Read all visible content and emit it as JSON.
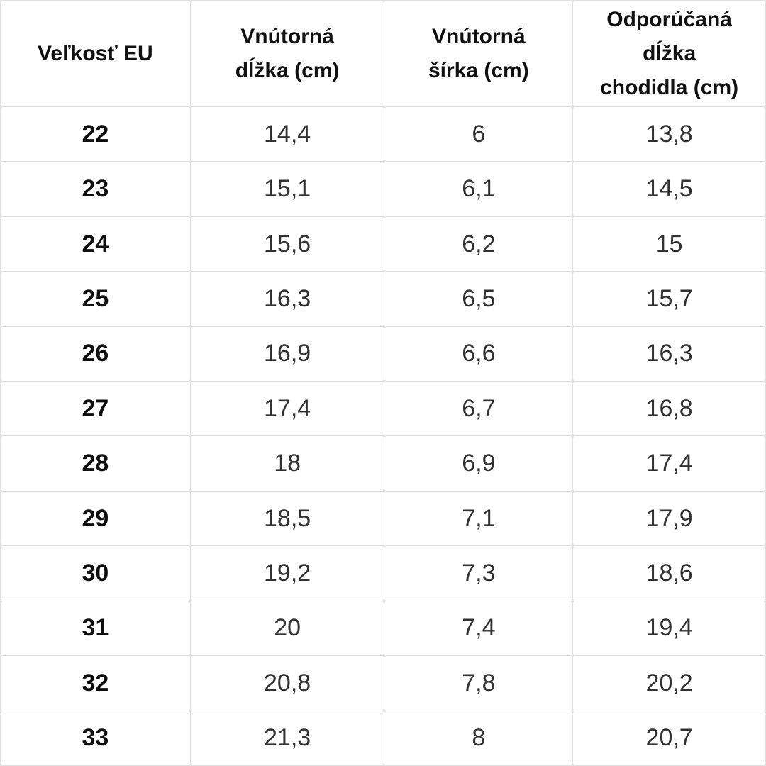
{
  "colors": {
    "grid_line": "#e1e1e1",
    "cell_background": "#ffffff",
    "header_text": "#111111",
    "value_text": "#313131"
  },
  "chart_data": {
    "type": "table",
    "title": "",
    "columns": [
      "Veľkosť EU",
      "Vnútorná dĺžka (cm)",
      "Vnútorná šírka (cm)",
      "Odporúčaná dĺžka chodidla (cm)"
    ],
    "column_lines": [
      [
        "Veľkosť EU"
      ],
      [
        "Vnútorná",
        "dĺžka (cm)"
      ],
      [
        "Vnútorná",
        "šírka (cm)"
      ],
      [
        "Odporúčaná",
        "dĺžka",
        "chodidla (cm)"
      ]
    ],
    "rows": [
      [
        "22",
        "14,4",
        "6",
        "13,8"
      ],
      [
        "23",
        "15,1",
        "6,1",
        "14,5"
      ],
      [
        "24",
        "15,6",
        "6,2",
        "15"
      ],
      [
        "25",
        "16,3",
        "6,5",
        "15,7"
      ],
      [
        "26",
        "16,9",
        "6,6",
        "16,3"
      ],
      [
        "27",
        "17,4",
        "6,7",
        "16,8"
      ],
      [
        "28",
        "18",
        "6,9",
        "17,4"
      ],
      [
        "29",
        "18,5",
        "7,1",
        "17,9"
      ],
      [
        "30",
        "19,2",
        "7,3",
        "18,6"
      ],
      [
        "31",
        "20",
        "7,4",
        "19,4"
      ],
      [
        "32",
        "20,8",
        "7,8",
        "20,2"
      ],
      [
        "33",
        "21,3",
        "8",
        "20,7"
      ]
    ]
  }
}
